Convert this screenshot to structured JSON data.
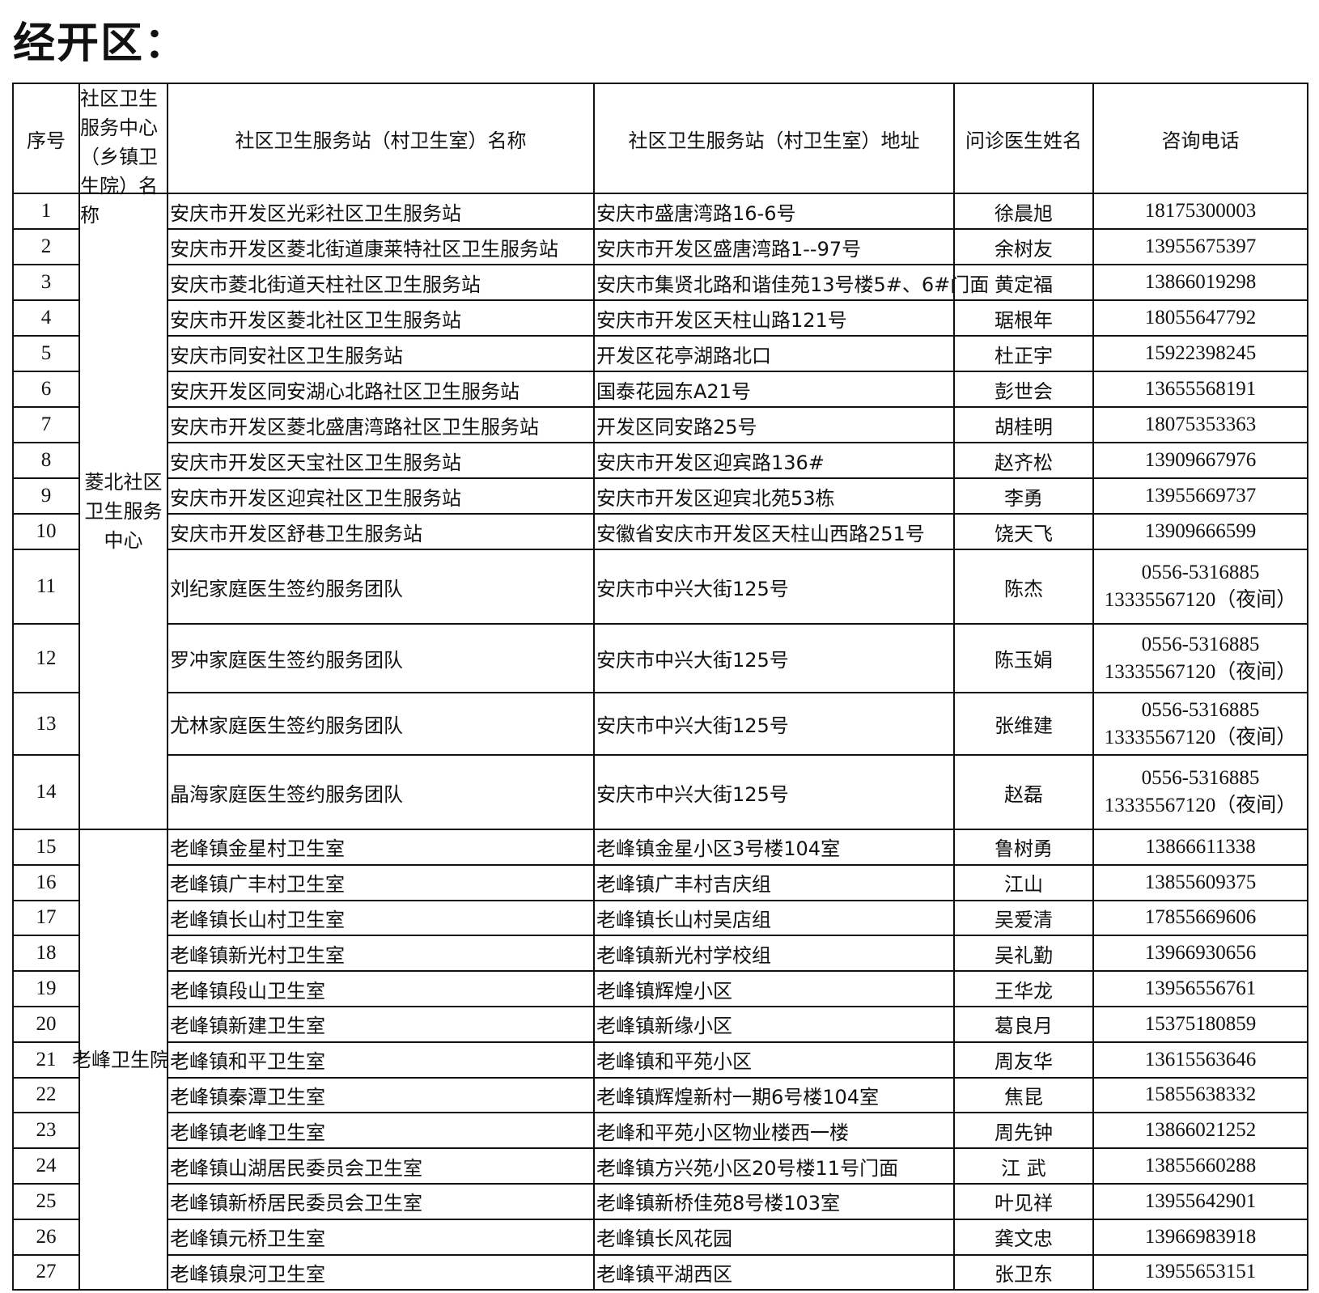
{
  "title": "经开区：",
  "headers": {
    "index": "序号",
    "center": "社区卫生服务中心（乡镇卫生院）名称",
    "station_name": "社区卫生服务站（村卫生室）名称",
    "station_address": "社区卫生服务站（村卫生室）地址",
    "doctor": "问诊医生姓名",
    "phone": "咨询电话"
  },
  "groups": [
    {
      "name": "菱北社区卫生服务中心",
      "rows": [
        {
          "no": "1",
          "station": "安庆市开发区光彩社区卫生服务站",
          "address": "安庆市盛唐湾路16-6号",
          "doctor": "徐晨旭",
          "phone": "18175300003"
        },
        {
          "no": "2",
          "station": "安庆市开发区菱北街道康莱特社区卫生服务站",
          "address": "安庆市开发区盛唐湾路1--97号",
          "doctor": "余树友",
          "phone": "13955675397"
        },
        {
          "no": "3",
          "station": "安庆市菱北街道天柱社区卫生服务站",
          "address": "安庆市集贤北路和谐佳苑13号楼5#、6#门面",
          "doctor": "黄定福",
          "phone": "13866019298"
        },
        {
          "no": "4",
          "station": "安庆市开发区菱北社区卫生服务站",
          "address": "安庆市开发区天柱山路121号",
          "doctor": "琚根年",
          "phone": "18055647792"
        },
        {
          "no": "5",
          "station": "安庆市同安社区卫生服务站",
          "address": "开发区花亭湖路北口",
          "doctor": "杜正宇",
          "phone": "15922398245"
        },
        {
          "no": "6",
          "station": "安庆开发区同安湖心北路社区卫生服务站",
          "address": "国泰花园东A21号",
          "doctor": "彭世会",
          "phone": "13655568191"
        },
        {
          "no": "7",
          "station": "安庆市开发区菱北盛唐湾路社区卫生服务站",
          "address": "开发区同安路25号",
          "doctor": "胡桂明",
          "phone": "18075353363"
        },
        {
          "no": "8",
          "station": "安庆市开发区天宝社区卫生服务站",
          "address": "安庆市开发区迎宾路136#",
          "doctor": "赵齐松",
          "phone": "13909667976"
        },
        {
          "no": "9",
          "station": "安庆市开发区迎宾社区卫生服务站",
          "address": "安庆市开发区迎宾北苑53栋",
          "doctor": "李勇",
          "phone": "13955669737"
        },
        {
          "no": "10",
          "station": "安庆市开发区舒巷卫生服务站",
          "address": "安徽省安庆市开发区天柱山西路251号",
          "doctor": "饶天飞",
          "phone": "13909666599"
        },
        {
          "no": "11",
          "station": "刘纪家庭医生签约服务团队",
          "address": "安庆市中兴大街125号",
          "doctor": "陈杰",
          "phone": "0556-5316885\n13335567120（夜间）"
        },
        {
          "no": "12",
          "station": "罗冲家庭医生签约服务团队",
          "address": "安庆市中兴大街125号",
          "doctor": "陈玉娟",
          "phone": "0556-5316885\n13335567120（夜间）"
        },
        {
          "no": "13",
          "station": "尤林家庭医生签约服务团队",
          "address": "安庆市中兴大街125号",
          "doctor": "张维建",
          "phone": "0556-5316885\n13335567120（夜间）"
        },
        {
          "no": "14",
          "station": "晶海家庭医生签约服务团队",
          "address": "安庆市中兴大街125号",
          "doctor": "赵磊",
          "phone": "0556-5316885\n13335567120（夜间）"
        }
      ]
    },
    {
      "name": "老峰卫生院",
      "rows": [
        {
          "no": "15",
          "station": "老峰镇金星村卫生室",
          "address": "老峰镇金星小区3号楼104室",
          "doctor": "鲁树勇",
          "phone": "13866611338"
        },
        {
          "no": "16",
          "station": "老峰镇广丰村卫生室",
          "address": "老峰镇广丰村吉庆组",
          "doctor": "江山",
          "phone": "13855609375"
        },
        {
          "no": "17",
          "station": "老峰镇长山村卫生室",
          "address": "老峰镇长山村吴店组",
          "doctor": "吴爱清",
          "phone": "17855669606"
        },
        {
          "no": "18",
          "station": "老峰镇新光村卫生室",
          "address": "老峰镇新光村学校组",
          "doctor": "吴礼勤",
          "phone": "13966930656"
        },
        {
          "no": "19",
          "station": "老峰镇段山卫生室",
          "address": "老峰镇辉煌小区",
          "doctor": "王华龙",
          "phone": "13956556761"
        },
        {
          "no": "20",
          "station": "老峰镇新建卫生室",
          "address": "老峰镇新缘小区",
          "doctor": "葛良月",
          "phone": "15375180859"
        },
        {
          "no": "21",
          "station": "老峰镇和平卫生室",
          "address": "老峰镇和平苑小区",
          "doctor": "周友华",
          "phone": "13615563646"
        },
        {
          "no": "22",
          "station": "老峰镇秦潭卫生室",
          "address": "老峰镇辉煌新村一期6号楼104室",
          "doctor": "焦昆",
          "phone": "15855638332"
        },
        {
          "no": "23",
          "station": "老峰镇老峰卫生室",
          "address": "老峰和平苑小区物业楼西一楼",
          "doctor": "周先钟",
          "phone": "13866021252"
        },
        {
          "no": "24",
          "station": "老峰镇山湖居民委员会卫生室",
          "address": "老峰镇方兴苑小区20号楼11号门面",
          "doctor": "江 武",
          "phone": "13855660288"
        },
        {
          "no": "25",
          "station": "老峰镇新桥居民委员会卫生室",
          "address": "老峰镇新桥佳苑8号楼103室",
          "doctor": "叶见祥",
          "phone": "13955642901"
        },
        {
          "no": "26",
          "station": "老峰镇元桥卫生室",
          "address": "老峰镇长风花园",
          "doctor": "龚文忠",
          "phone": "13966983918"
        },
        {
          "no": "27",
          "station": "老峰镇泉河卫生室",
          "address": "老峰镇平湖西区",
          "doctor": "张卫东",
          "phone": "13955653151"
        }
      ]
    }
  ]
}
